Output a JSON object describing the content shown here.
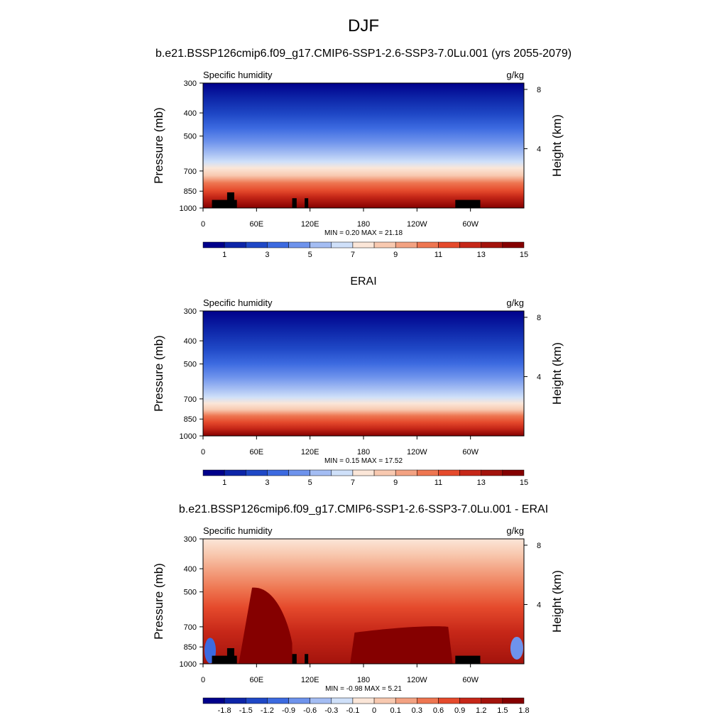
{
  "figure": {
    "season": "DJF",
    "panel_titles": [
      "b.e21.BSSP126cmip6.f09_g17.CMIP6-SSP1-2.6-SSP3-7.0Lu.001 (yrs 2055-2079)",
      "ERAI",
      "b.e21.BSSP126cmip6.f09_g17.CMIP6-SSP1-2.6-SSP3-7.0Lu.001 - ERAI"
    ]
  },
  "chart_data": [
    {
      "type": "heatmap",
      "title": "b.e21.BSSP126cmip6.f09_g17.CMIP6-SSP1-2.6-SSP3-7.0Lu.001 (yrs 2055-2079)",
      "left_label": "Specific humidity",
      "right_label": "g/kg",
      "ylabel": "Pressure (mb)",
      "y2label": "Height (km)",
      "x_ticks": [
        "0",
        "60E",
        "120E",
        "180",
        "120W",
        "60W"
      ],
      "x_tick_values": [
        0,
        60,
        120,
        180,
        240,
        300
      ],
      "xlim": [
        0,
        360
      ],
      "y_ticks": [
        "300",
        "400",
        "500",
        "700",
        "850",
        "1000"
      ],
      "y_tick_values": [
        300,
        400,
        500,
        700,
        850,
        1000
      ],
      "y2_ticks": [
        "8",
        "4"
      ],
      "y2_tick_values": [
        8,
        4
      ],
      "ylim": [
        1000,
        300
      ],
      "y_scale": "log",
      "stats_text": "MIN =   0.20  MAX =   21.18",
      "min": 0.2,
      "max": 21.18,
      "colorbar_labels": [
        "1",
        "3",
        "5",
        "7",
        "9",
        "11",
        "13",
        "15"
      ],
      "colorbar_colors": [
        "#00008b",
        "#0d25a8",
        "#1f48c6",
        "#3c6ae0",
        "#6e93ec",
        "#a4bdf3",
        "#cfe0f9",
        "#fbe6d8",
        "#f8c9b0",
        "#f3a282",
        "#ee7651",
        "#e54a2c",
        "#c62718",
        "#a3130c",
        "#850000"
      ]
    },
    {
      "type": "heatmap",
      "title": "ERAI",
      "left_label": "Specific humidity",
      "right_label": "g/kg",
      "ylabel": "Pressure (mb)",
      "y2label": "Height (km)",
      "x_ticks": [
        "0",
        "60E",
        "120E",
        "180",
        "120W",
        "60W"
      ],
      "x_tick_values": [
        0,
        60,
        120,
        180,
        240,
        300
      ],
      "xlim": [
        0,
        360
      ],
      "y_ticks": [
        "300",
        "400",
        "500",
        "700",
        "850",
        "1000"
      ],
      "y_tick_values": [
        300,
        400,
        500,
        700,
        850,
        1000
      ],
      "y2_ticks": [
        "8",
        "4"
      ],
      "y2_tick_values": [
        8,
        4
      ],
      "ylim": [
        1000,
        300
      ],
      "y_scale": "log",
      "stats_text": "MIN =   0.15  MAX =   17.52",
      "min": 0.15,
      "max": 17.52,
      "colorbar_labels": [
        "1",
        "3",
        "5",
        "7",
        "9",
        "11",
        "13",
        "15"
      ],
      "colorbar_colors": [
        "#00008b",
        "#0d25a8",
        "#1f48c6",
        "#3c6ae0",
        "#6e93ec",
        "#a4bdf3",
        "#cfe0f9",
        "#fbe6d8",
        "#f8c9b0",
        "#f3a282",
        "#ee7651",
        "#e54a2c",
        "#c62718",
        "#a3130c",
        "#850000"
      ]
    },
    {
      "type": "heatmap",
      "title": "b.e21.BSSP126cmip6.f09_g17.CMIP6-SSP1-2.6-SSP3-7.0Lu.001 - ERAI",
      "left_label": "Specific humidity",
      "right_label": "g/kg",
      "ylabel": "Pressure (mb)",
      "y2label": "Height (km)",
      "x_ticks": [
        "0",
        "60E",
        "120E",
        "180",
        "120W",
        "60W"
      ],
      "x_tick_values": [
        0,
        60,
        120,
        180,
        240,
        300
      ],
      "xlim": [
        0,
        360
      ],
      "y_ticks": [
        "300",
        "400",
        "500",
        "700",
        "850",
        "1000"
      ],
      "y_tick_values": [
        300,
        400,
        500,
        700,
        850,
        1000
      ],
      "y2_ticks": [
        "8",
        "4"
      ],
      "y2_tick_values": [
        8,
        4
      ],
      "ylim": [
        1000,
        300
      ],
      "y_scale": "log",
      "stats_text": "MIN =  -0.98  MAX =    5.21",
      "min": -0.98,
      "max": 5.21,
      "colorbar_labels": [
        "-1.8",
        "-1.5",
        "-1.2",
        "-0.9",
        "-0.6",
        "-0.3",
        "-0.1",
        "0",
        "0.1",
        "0.3",
        "0.6",
        "0.9",
        "1.2",
        "1.5",
        "1.8"
      ],
      "colorbar_colors": [
        "#00008b",
        "#0d25a8",
        "#1f48c6",
        "#3c6ae0",
        "#6e93ec",
        "#a4bdf3",
        "#cfe0f9",
        "#fbe6d8",
        "#f8c9b0",
        "#f3a282",
        "#ee7651",
        "#e54a2c",
        "#c62718",
        "#a3130c",
        "#850000"
      ]
    }
  ]
}
